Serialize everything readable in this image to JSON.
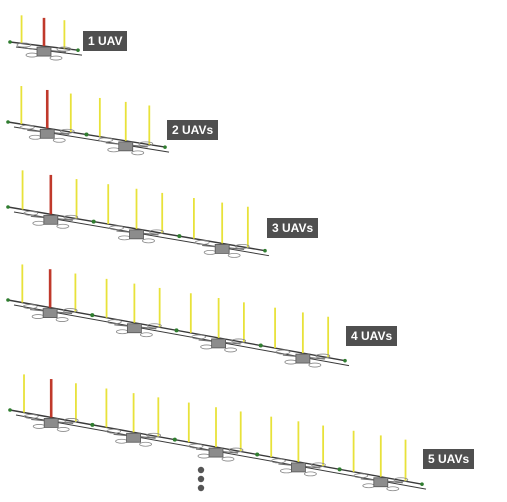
{
  "rows": [
    {
      "label": "1 UAV",
      "uav_count": 1
    },
    {
      "label": "2 UAVs",
      "uav_count": 2
    },
    {
      "label": "3 UAVs",
      "uav_count": 3
    },
    {
      "label": "4 UAVs",
      "uav_count": 4
    },
    {
      "label": "5 UAVs",
      "uav_count": 5
    }
  ],
  "colors": {
    "mast_yellow": "#e8e23a",
    "mast_red": "#c0392b",
    "rail": "#3a3a3a",
    "uav_body": "#8c8c8c",
    "joint": "#2f7d2f",
    "label_bg": "#4f4f4f",
    "label_text": "#ffffff"
  },
  "continuation_marker": "vertical-ellipsis"
}
